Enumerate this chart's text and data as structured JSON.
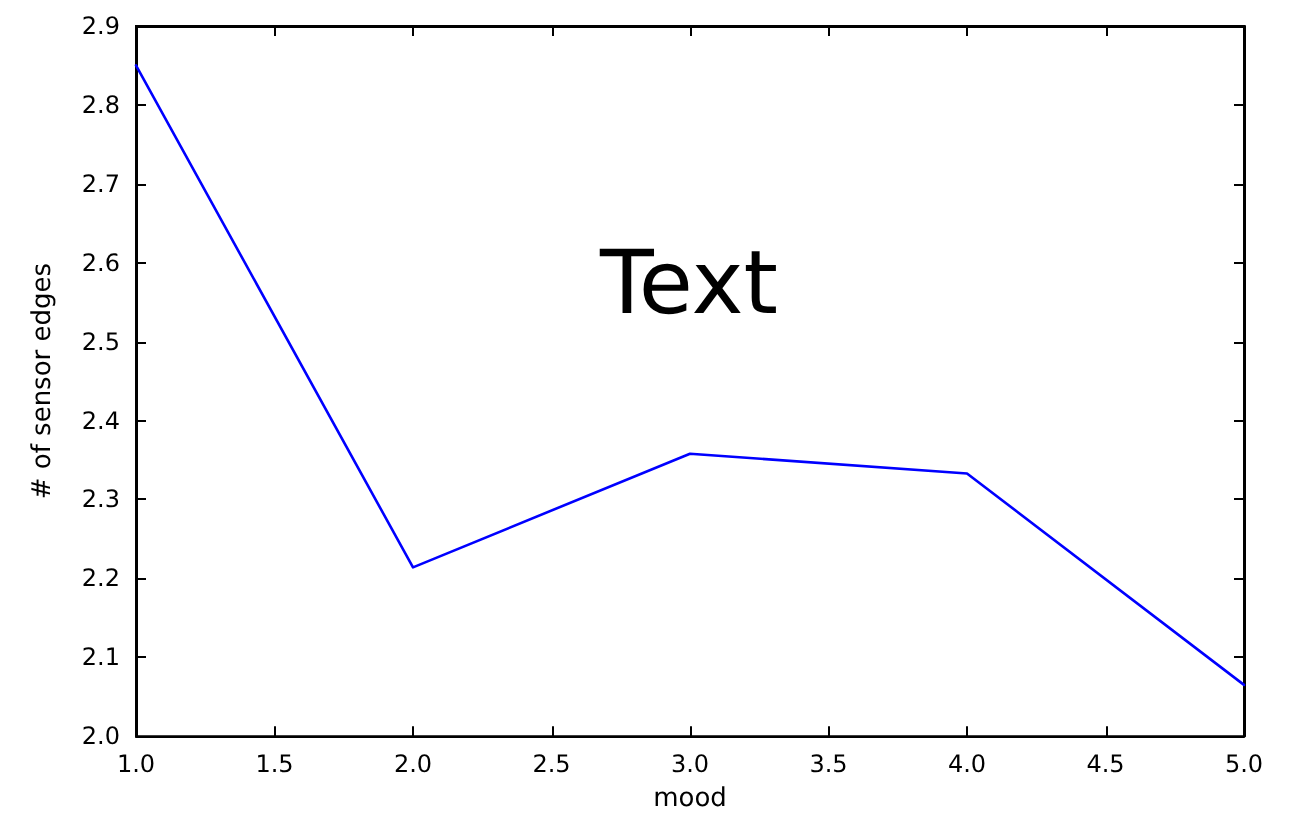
{
  "chart_data": {
    "type": "line",
    "xlabel": "mood",
    "ylabel": "# of sensor edges",
    "annotations": [
      "Text"
    ],
    "x": [
      1,
      2,
      3,
      4,
      5
    ],
    "series": [
      {
        "color": "#0000ff",
        "values": [
          2.85,
          2.214,
          2.358,
          2.333,
          2.065
        ]
      }
    ],
    "xlim": [
      1,
      5
    ],
    "xticks": [
      {
        "value": 1,
        "label": "1.0"
      },
      {
        "value": 1.5,
        "label": "1.5"
      },
      {
        "value": 2,
        "label": "2.0"
      },
      {
        "value": 2.5,
        "label": "2.5"
      },
      {
        "value": 3,
        "label": "3.0"
      },
      {
        "value": 3.5,
        "label": "3.5"
      },
      {
        "value": 4,
        "label": "4.0"
      },
      {
        "value": 4.5,
        "label": "4.5"
      },
      {
        "value": 5,
        "label": "5.0"
      }
    ],
    "ylim": [
      2,
      2.9
    ],
    "yticks": [
      {
        "value": 2,
        "label": "2.0"
      },
      {
        "value": 2.1,
        "label": "2.1"
      },
      {
        "value": 2.2,
        "label": "2.2"
      },
      {
        "value": 2.3,
        "label": "2.3"
      },
      {
        "value": 2.4,
        "label": "2.4"
      },
      {
        "value": 2.5,
        "label": "2.5"
      },
      {
        "value": 2.6,
        "label": "2.6"
      },
      {
        "value": 2.7,
        "label": "2.7"
      },
      {
        "value": 2.8,
        "label": "2.8"
      },
      {
        "value": 2.9,
        "label": "2.9"
      }
    ],
    "grid": false,
    "marker": "none",
    "line_style": "solid"
  }
}
